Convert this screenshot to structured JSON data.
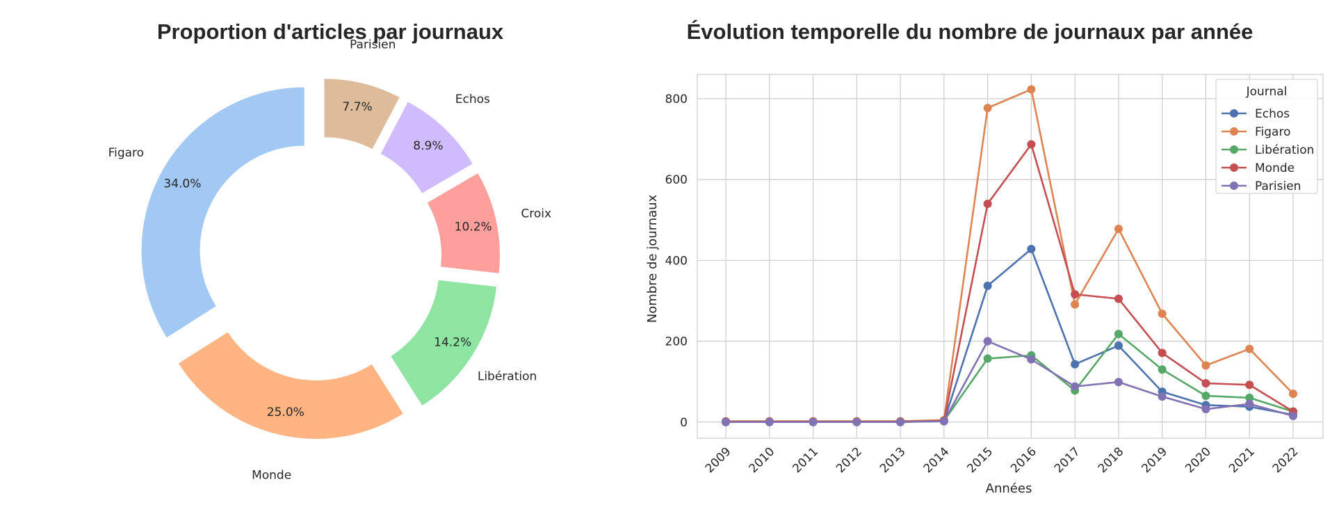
{
  "chart_data": [
    {
      "type": "pie",
      "variant": "donut",
      "title": "Proportion d'articles par journaux",
      "slices": [
        {
          "label": "Figaro",
          "value": 34.0,
          "pct_label": "34.0%",
          "color": "#a1c9f4"
        },
        {
          "label": "Monde",
          "value": 25.0,
          "pct_label": "25.0%",
          "color": "#ffb482"
        },
        {
          "label": "Libération",
          "value": 14.2,
          "pct_label": "14.2%",
          "color": "#8de5a1"
        },
        {
          "label": "Croix",
          "value": 10.2,
          "pct_label": "10.2%",
          "color": "#ff9f9b"
        },
        {
          "label": "Echos",
          "value": 8.9,
          "pct_label": "8.9%",
          "color": "#d0bbff"
        },
        {
          "label": "Parisien",
          "value": 7.7,
          "pct_label": "7.7%",
          "color": "#debb9b"
        }
      ]
    },
    {
      "type": "line",
      "title": "Évolution temporelle du nombre de journaux par année",
      "xlabel": "Années",
      "ylabel": "Nombre de journaux",
      "x": [
        "2009",
        "2010",
        "2011",
        "2012",
        "2013",
        "2014",
        "2015",
        "2016",
        "2017",
        "2018",
        "2019",
        "2020",
        "2021",
        "2022"
      ],
      "yticks": [
        "0",
        "200",
        "400",
        "600",
        "800"
      ],
      "ylim": [
        -40,
        860
      ],
      "grid": true,
      "legend_title": "Journal",
      "legend_position": "top-right",
      "series": [
        {
          "name": "Echos",
          "color": "#4c72b0",
          "values": [
            0,
            0,
            0,
            0,
            0,
            2,
            337,
            428,
            143,
            189,
            75,
            42,
            38,
            18
          ]
        },
        {
          "name": "Figaro",
          "color": "#dd8452",
          "values": [
            2,
            2,
            2,
            2,
            2,
            5,
            777,
            823,
            291,
            478,
            268,
            140,
            181,
            70
          ]
        },
        {
          "name": "Libération",
          "color": "#55a868",
          "values": [
            1,
            1,
            1,
            1,
            1,
            3,
            157,
            165,
            78,
            218,
            130,
            65,
            60,
            26
          ]
        },
        {
          "name": "Monde",
          "color": "#c44e52",
          "values": [
            1,
            1,
            1,
            1,
            1,
            3,
            540,
            687,
            316,
            305,
            171,
            96,
            92,
            26
          ]
        },
        {
          "name": "Parisien",
          "color": "#8172b3",
          "values": [
            0,
            0,
            0,
            0,
            0,
            2,
            200,
            155,
            88,
            99,
            63,
            32,
            45,
            15
          ]
        }
      ]
    }
  ]
}
